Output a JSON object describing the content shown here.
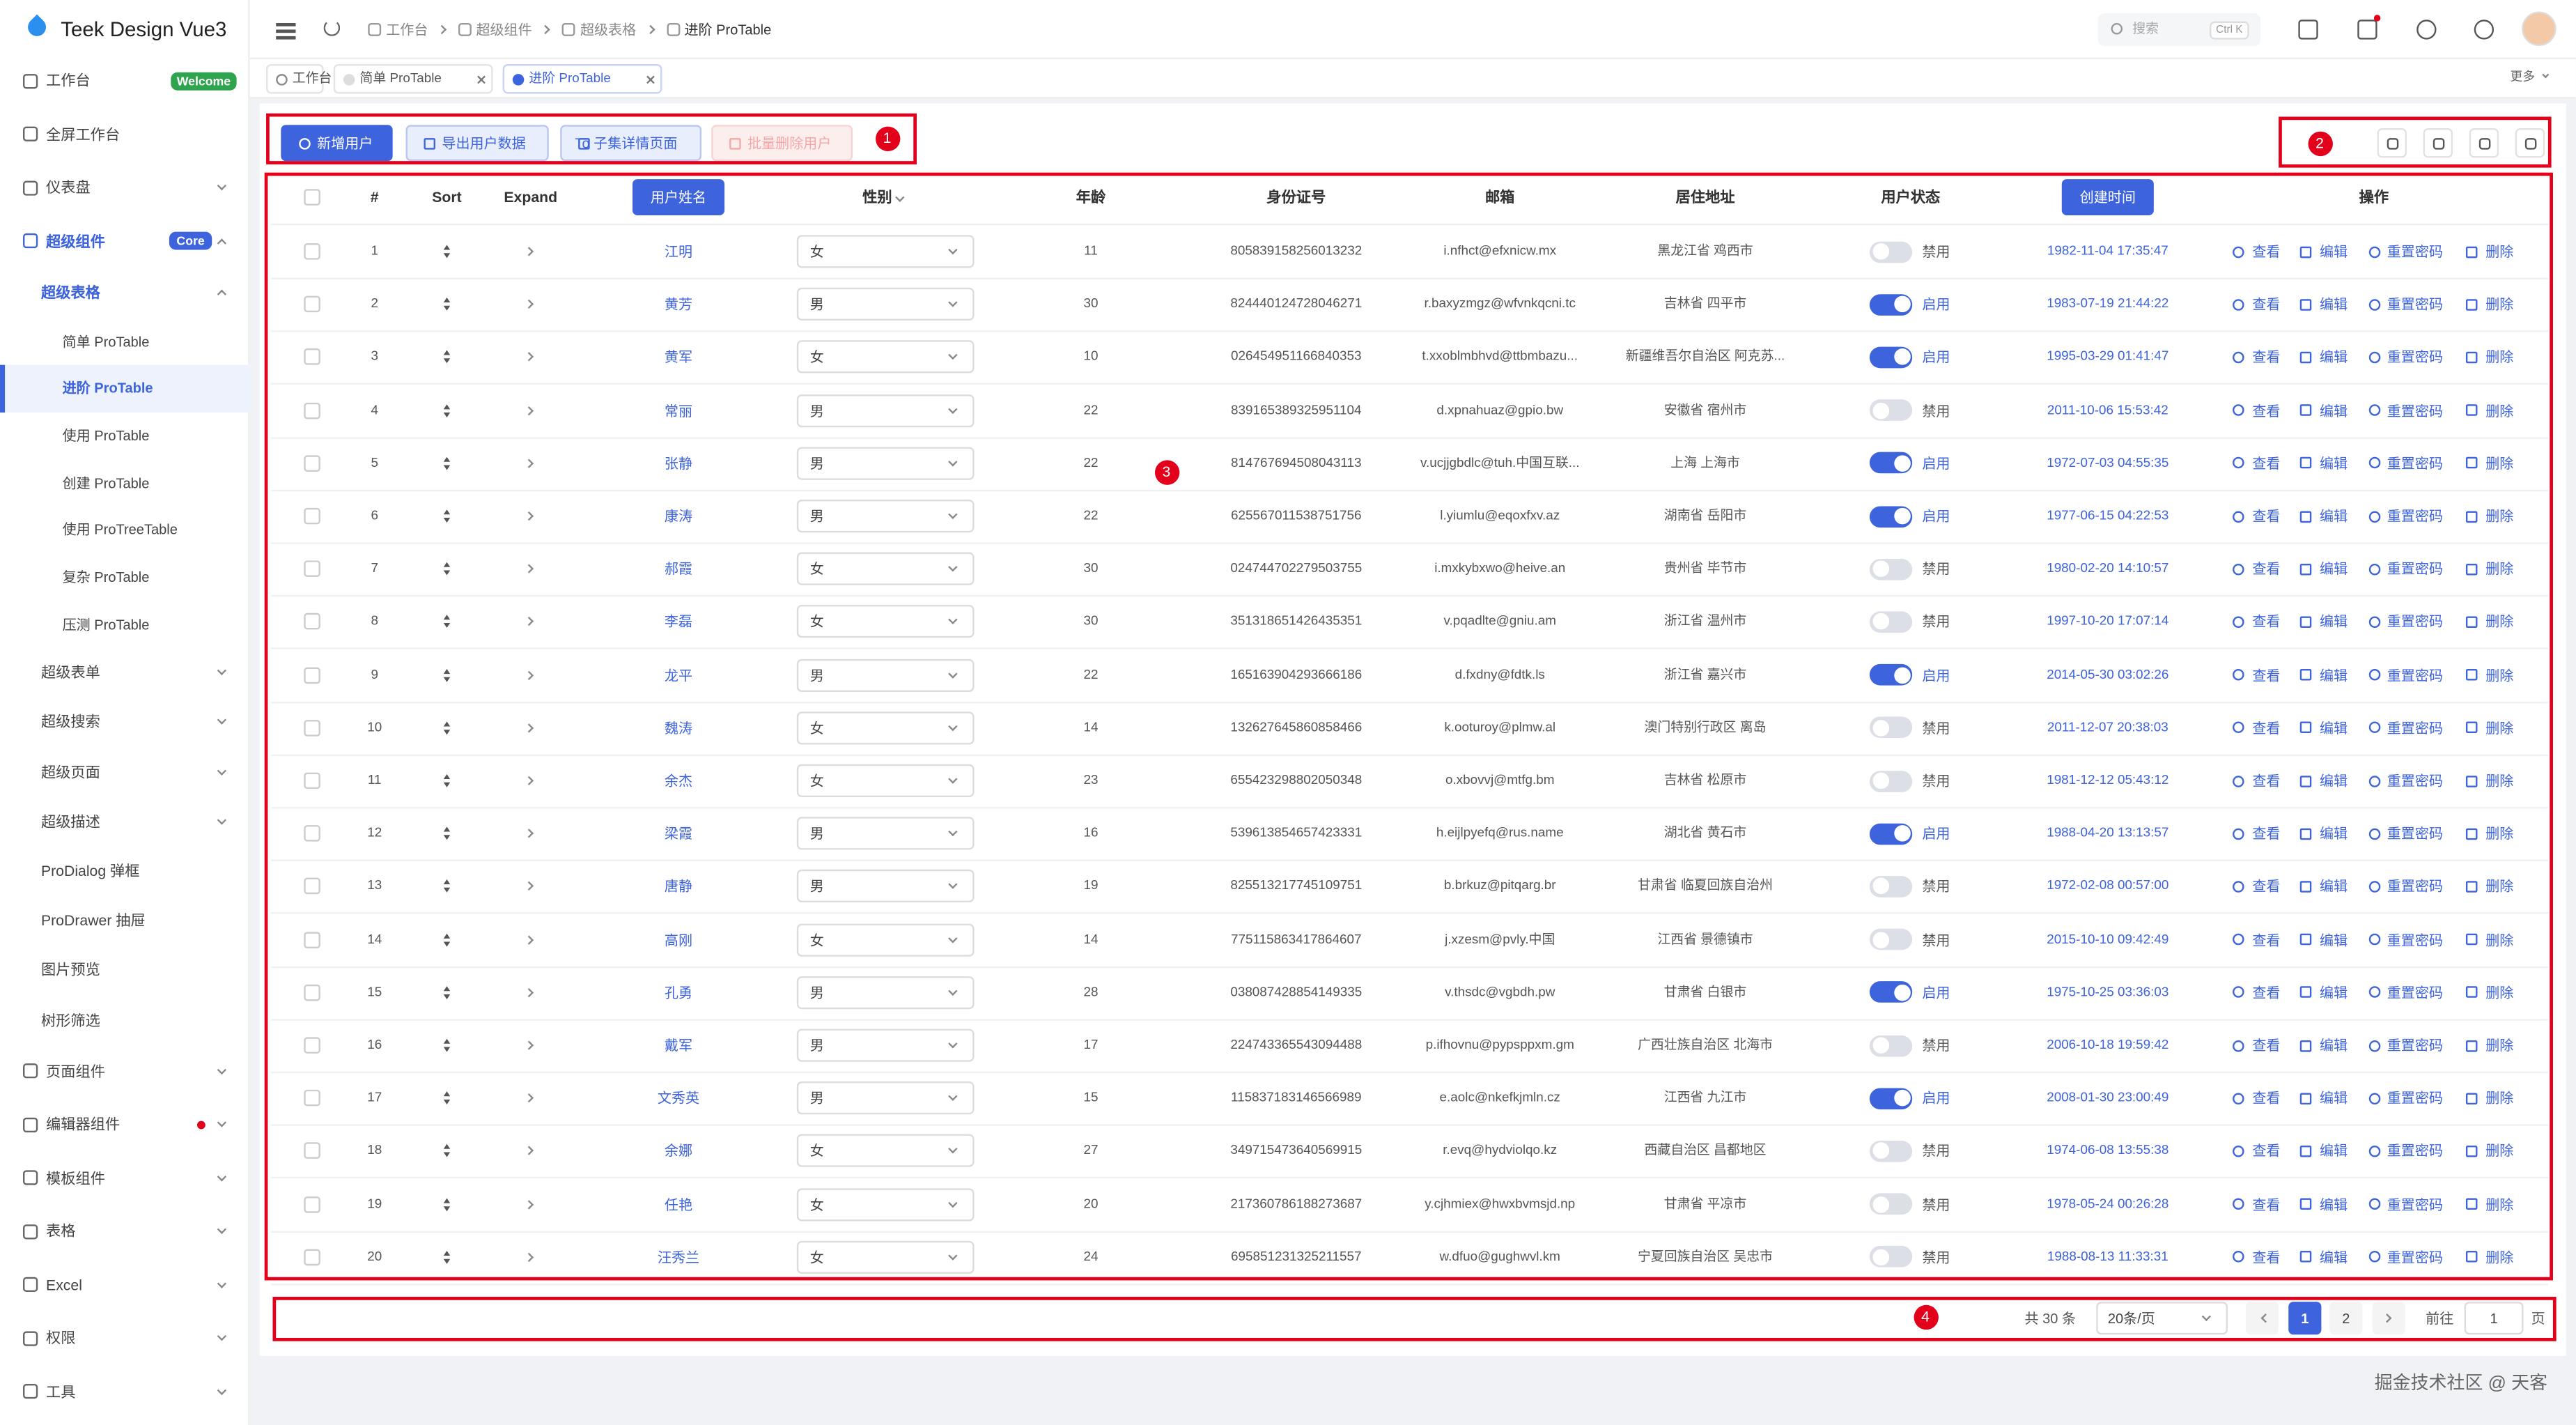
{
  "sidebar": {
    "logo": "Teek Design Vue3",
    "menu": [
      {
        "label": "工作台",
        "level": 0,
        "badge": "Welcome",
        "badge_color": "#2ea44f"
      },
      {
        "label": "全屏工作台",
        "level": 0
      },
      {
        "label": "仪表盘",
        "level": 0,
        "arrow": "down"
      },
      {
        "label": "超级组件",
        "level": 0,
        "badge": "Core",
        "badge_color": "#3d63dd",
        "arrow": "up",
        "highlight": true
      },
      {
        "label": "超级表格",
        "level": 1,
        "arrow": "up",
        "highlight": true
      },
      {
        "label": "简单 ProTable",
        "level": 2
      },
      {
        "label": "进阶 ProTable",
        "level": 2,
        "active": true
      },
      {
        "label": "使用 ProTable",
        "level": 2
      },
      {
        "label": "创建 ProTable",
        "level": 2
      },
      {
        "label": "使用 ProTreeTable",
        "level": 2
      },
      {
        "label": "复杂 ProTable",
        "level": 2
      },
      {
        "label": "压测 ProTable",
        "level": 2
      },
      {
        "label": "超级表单",
        "level": 1,
        "arrow": "down"
      },
      {
        "label": "超级搜索",
        "level": 1,
        "arrow": "down"
      },
      {
        "label": "超级页面",
        "level": 1,
        "arrow": "down"
      },
      {
        "label": "超级描述",
        "level": 1,
        "arrow": "down"
      },
      {
        "label": "ProDialog 弹框",
        "level": 1
      },
      {
        "label": "ProDrawer 抽屉",
        "level": 1
      },
      {
        "label": "图片预览",
        "level": 1
      },
      {
        "label": "树形筛选",
        "level": 1
      },
      {
        "label": "页面组件",
        "level": 0,
        "arrow": "down"
      },
      {
        "label": "编辑器组件",
        "level": 0,
        "arrow": "down",
        "dot": true
      },
      {
        "label": "模板组件",
        "level": 0,
        "arrow": "down"
      },
      {
        "label": "表格",
        "level": 0,
        "arrow": "down"
      },
      {
        "label": "Excel",
        "level": 0,
        "arrow": "down"
      },
      {
        "label": "权限",
        "level": 0,
        "arrow": "down"
      },
      {
        "label": "工具",
        "level": 0,
        "arrow": "down"
      }
    ]
  },
  "header": {
    "breadcrumb": [
      "工作台",
      "超级组件",
      "超级表格",
      "进阶 ProTable"
    ],
    "search": "搜索",
    "shortcut": "Ctrl K"
  },
  "tabs": {
    "items": [
      {
        "label": "工作台"
      },
      {
        "label": "简单 ProTable",
        "closable": true
      },
      {
        "label": "进阶 ProTable",
        "closable": true,
        "active": true
      }
    ],
    "more": "更多"
  },
  "toolbar": {
    "buttons": [
      {
        "label": "新增用户",
        "style": "primary"
      },
      {
        "label": "导出用户数据",
        "style": "plain"
      },
      {
        "label": "To 子集详情页面",
        "style": "plain"
      },
      {
        "label": "批量删除用户",
        "style": "danger"
      }
    ]
  },
  "annotations": [
    "1",
    "2",
    "3",
    "4"
  ],
  "table": {
    "columns": [
      {
        "label": "#"
      },
      {
        "label": "Sort"
      },
      {
        "label": "Expand"
      },
      {
        "label": "用户姓名",
        "highlight": true
      },
      {
        "label": "性别",
        "filter": true
      },
      {
        "label": "年龄"
      },
      {
        "label": "身份证号"
      },
      {
        "label": "邮箱"
      },
      {
        "label": "居住地址"
      },
      {
        "label": "用户状态"
      },
      {
        "label": "创建时间",
        "highlight": true
      },
      {
        "label": "操作"
      }
    ],
    "actions": [
      "查看",
      "编辑",
      "重置密码",
      "删除"
    ],
    "status_on": "启用",
    "rows": [
      {
        "index": 1,
        "name": "江明",
        "gender": "女",
        "age": 11,
        "id_card": "805839158256013232",
        "email": "i.nfhct@efxnicw.mx",
        "address": "黑龙江省 鸡西市",
        "status": "禁用",
        "created": "1982-11-04 17:35:47"
      },
      {
        "index": 2,
        "name": "黄芳",
        "gender": "男",
        "age": 30,
        "id_card": "824440124728046271",
        "email": "r.baxyzmgz@wfvnkqcni.tc",
        "address": "吉林省 四平市",
        "status": "启用",
        "created": "1983-07-19 21:44:22"
      },
      {
        "index": 3,
        "name": "黄军",
        "gender": "女",
        "age": 10,
        "id_card": "026454951166840353",
        "email": "t.xxoblmbhvd@ttbmbazu...",
        "address": "新疆维吾尔自治区 阿克苏...",
        "status": "启用",
        "created": "1995-03-29 01:41:47"
      },
      {
        "index": 4,
        "name": "常丽",
        "gender": "男",
        "age": 22,
        "id_card": "839165389325951104",
        "email": "d.xpnahuaz@gpio.bw",
        "address": "安徽省 宿州市",
        "status": "禁用",
        "created": "2011-10-06 15:53:42"
      },
      {
        "index": 5,
        "name": "张静",
        "gender": "男",
        "age": 22,
        "id_card": "814767694508043113",
        "email": "v.ucjjgbdlc@tuh.中国互联...",
        "address": "上海 上海市",
        "status": "启用",
        "created": "1972-07-03 04:55:35"
      },
      {
        "index": 6,
        "name": "康涛",
        "gender": "男",
        "age": 22,
        "id_card": "625567011538751756",
        "email": "l.yiumlu@eqoxfxv.az",
        "address": "湖南省 岳阳市",
        "status": "启用",
        "created": "1977-06-15 04:22:53"
      },
      {
        "index": 7,
        "name": "郝霞",
        "gender": "女",
        "age": 30,
        "id_card": "024744702279503755",
        "email": "i.mxkybxwo@heive.an",
        "address": "贵州省 毕节市",
        "status": "禁用",
        "created": "1980-02-20 14:10:57"
      },
      {
        "index": 8,
        "name": "李磊",
        "gender": "女",
        "age": 30,
        "id_card": "351318651426435351",
        "email": "v.pqadlte@gniu.am",
        "address": "浙江省 温州市",
        "status": "禁用",
        "created": "1997-10-20 17:07:14"
      },
      {
        "index": 9,
        "name": "龙平",
        "gender": "男",
        "age": 22,
        "id_card": "165163904293666186",
        "email": "d.fxdny@fdtk.ls",
        "address": "浙江省 嘉兴市",
        "status": "启用",
        "created": "2014-05-30 03:02:26"
      },
      {
        "index": 10,
        "name": "魏涛",
        "gender": "女",
        "age": 14,
        "id_card": "132627645860858466",
        "email": "k.ooturoy@plmw.al",
        "address": "澳门特别行政区 离岛",
        "status": "禁用",
        "created": "2011-12-07 20:38:03"
      },
      {
        "index": 11,
        "name": "余杰",
        "gender": "女",
        "age": 23,
        "id_card": "655423298802050348",
        "email": "o.xbovvj@mtfg.bm",
        "address": "吉林省 松原市",
        "status": "禁用",
        "created": "1981-12-12 05:43:12"
      },
      {
        "index": 12,
        "name": "梁霞",
        "gender": "男",
        "age": 16,
        "id_card": "539613854657423331",
        "email": "h.eijlpyefq@rus.name",
        "address": "湖北省 黄石市",
        "status": "启用",
        "created": "1988-04-20 13:13:57"
      },
      {
        "index": 13,
        "name": "唐静",
        "gender": "男",
        "age": 19,
        "id_card": "825513217745109751",
        "email": "b.brkuz@pitqarg.br",
        "address": "甘肃省 临夏回族自治州",
        "status": "禁用",
        "created": "1972-02-08 00:57:00"
      },
      {
        "index": 14,
        "name": "高刚",
        "gender": "女",
        "age": 14,
        "id_card": "775115863417864607",
        "email": "j.xzesm@pvly.中国",
        "address": "江西省 景德镇市",
        "status": "禁用",
        "created": "2015-10-10 09:42:49"
      },
      {
        "index": 15,
        "name": "孔勇",
        "gender": "男",
        "age": 28,
        "id_card": "038087428854149335",
        "email": "v.thsdc@vgbdh.pw",
        "address": "甘肃省 白银市",
        "status": "启用",
        "created": "1975-10-25 03:36:03"
      },
      {
        "index": 16,
        "name": "戴军",
        "gender": "男",
        "age": 17,
        "id_card": "224743365543094488",
        "email": "p.ifhovnu@pypsppxm.gm",
        "address": "广西壮族自治区 北海市",
        "status": "禁用",
        "created": "2006-10-18 19:59:42"
      },
      {
        "index": 17,
        "name": "文秀英",
        "gender": "男",
        "age": 15,
        "id_card": "115837183146566989",
        "email": "e.aolc@nkefkjmln.cz",
        "address": "江西省 九江市",
        "status": "启用",
        "created": "2008-01-30 23:00:49"
      },
      {
        "index": 18,
        "name": "余娜",
        "gender": "女",
        "age": 27,
        "id_card": "349715473640569915",
        "email": "r.evq@hydviolqo.kz",
        "address": "西藏自治区 昌都地区",
        "status": "禁用",
        "created": "1974-06-08 13:55:38"
      },
      {
        "index": 19,
        "name": "任艳",
        "gender": "女",
        "age": 20,
        "id_card": "217360786188273687",
        "email": "y.cjhmiex@hwxbvmsjd.np",
        "address": "甘肃省 平凉市",
        "status": "禁用",
        "created": "1978-05-24 00:26:28"
      },
      {
        "index": 20,
        "name": "汪秀兰",
        "gender": "女",
        "age": 24,
        "id_card": "695851231325211557",
        "email": "w.dfuo@gughwvl.km",
        "address": "宁夏回族自治区 吴忠市",
        "status": "禁用",
        "created": "1988-08-13 11:33:31"
      }
    ]
  },
  "pagination": {
    "total": "共 30 条",
    "page_size": "20条/页",
    "pages": [
      1,
      2
    ],
    "current": 1,
    "goto": "前往",
    "goto_value": 1,
    "page_unit": "页"
  },
  "watermark": "掘金技术社区 @ 天客"
}
